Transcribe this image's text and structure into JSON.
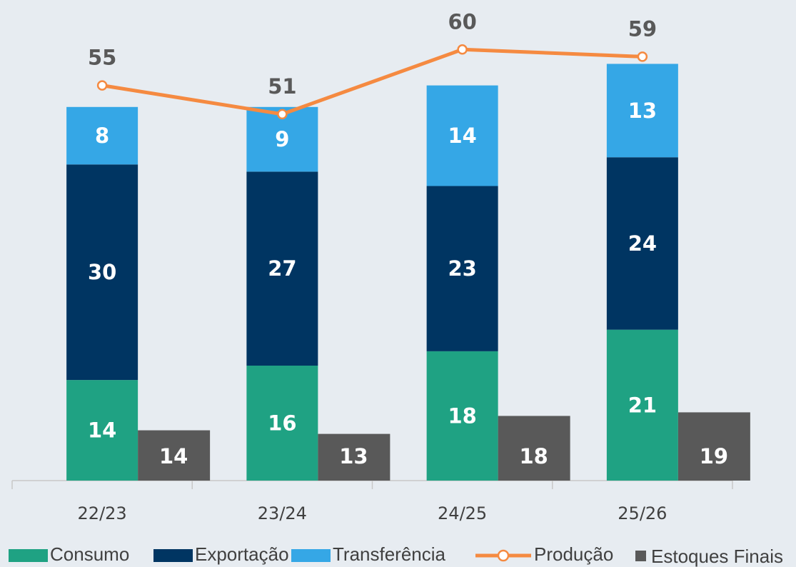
{
  "chart_data": {
    "type": "bar",
    "categories": [
      "22/23",
      "23/24",
      "24/25",
      "25/26"
    ],
    "series": [
      {
        "name": "Consumo",
        "color": "#1fa283",
        "type": "bar",
        "values": [
          14,
          16,
          18,
          21
        ]
      },
      {
        "name": "Exportação",
        "color": "#003562",
        "type": "bar",
        "values": [
          30,
          27,
          23,
          24
        ]
      },
      {
        "name": "Transferência",
        "color": "#35a7e6",
        "type": "bar",
        "values": [
          8,
          9,
          14,
          13
        ]
      },
      {
        "name": "Produção",
        "color": "#f58a41",
        "type": "line",
        "values": [
          55,
          51,
          60,
          59
        ]
      },
      {
        "name": "Estoques Finais",
        "color": "#595959",
        "type": "bar",
        "axis": "y2",
        "values": [
          14,
          13,
          18,
          19
        ]
      }
    ],
    "ylim": [
      0,
      65
    ],
    "y2lim": [
      0,
      130
    ]
  }
}
